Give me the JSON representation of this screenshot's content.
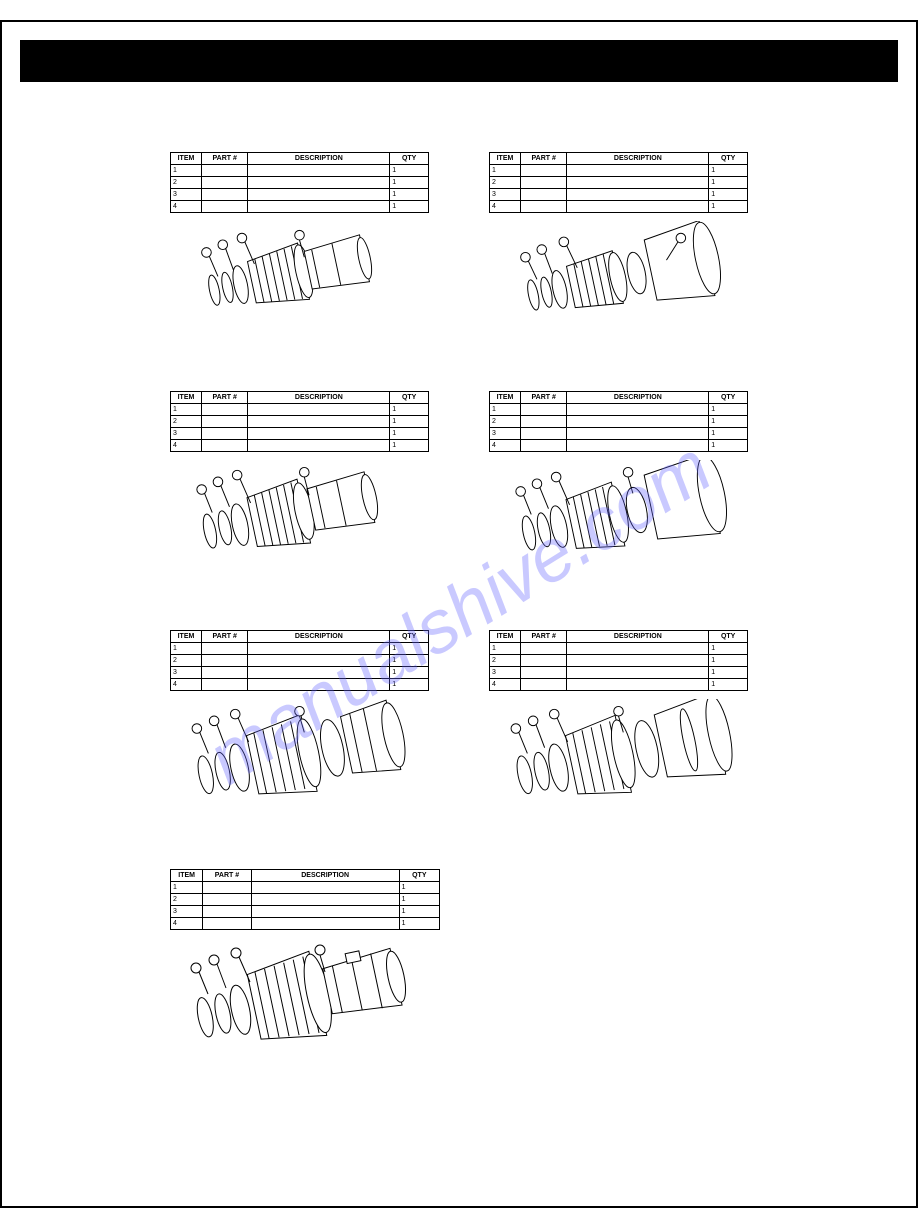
{
  "watermark_text": "manualshive.com",
  "watermark_color": "rgba(100,100,255,0.35)",
  "table_header": {
    "c1": "ITEM",
    "c2": "PART #",
    "c3": "DESCRIPTION",
    "c4": "QTY"
  },
  "blocks": [
    {
      "rows": [
        {
          "c1": "1",
          "c2": "",
          "c3": "",
          "c4": "1"
        },
        {
          "c1": "2",
          "c2": "",
          "c3": "",
          "c4": "1"
        },
        {
          "c1": "3",
          "c2": "",
          "c3": "",
          "c4": "1"
        },
        {
          "c1": "4",
          "c2": "",
          "c3": "",
          "c4": "1"
        }
      ]
    },
    {
      "rows": [
        {
          "c1": "1",
          "c2": "",
          "c3": "",
          "c4": "1"
        },
        {
          "c1": "2",
          "c2": "",
          "c3": "",
          "c4": "1"
        },
        {
          "c1": "3",
          "c2": "",
          "c3": "",
          "c4": "1"
        },
        {
          "c1": "4",
          "c2": "",
          "c3": "",
          "c4": "1"
        }
      ]
    },
    {
      "rows": [
        {
          "c1": "1",
          "c2": "",
          "c3": "",
          "c4": "1"
        },
        {
          "c1": "2",
          "c2": "",
          "c3": "",
          "c4": "1"
        },
        {
          "c1": "3",
          "c2": "",
          "c3": "",
          "c4": "1"
        },
        {
          "c1": "4",
          "c2": "",
          "c3": "",
          "c4": "1"
        }
      ]
    },
    {
      "rows": [
        {
          "c1": "1",
          "c2": "",
          "c3": "",
          "c4": "1"
        },
        {
          "c1": "2",
          "c2": "",
          "c3": "",
          "c4": "1"
        },
        {
          "c1": "3",
          "c2": "",
          "c3": "",
          "c4": "1"
        },
        {
          "c1": "4",
          "c2": "",
          "c3": "",
          "c4": "1"
        }
      ]
    },
    {
      "rows": [
        {
          "c1": "1",
          "c2": "",
          "c3": "",
          "c4": "1"
        },
        {
          "c1": "2",
          "c2": "",
          "c3": "",
          "c4": "1"
        },
        {
          "c1": "3",
          "c2": "",
          "c3": "",
          "c4": "1"
        },
        {
          "c1": "4",
          "c2": "",
          "c3": "",
          "c4": "1"
        }
      ]
    },
    {
      "rows": [
        {
          "c1": "1",
          "c2": "",
          "c3": "",
          "c4": "1"
        },
        {
          "c1": "2",
          "c2": "",
          "c3": "",
          "c4": "1"
        },
        {
          "c1": "3",
          "c2": "",
          "c3": "",
          "c4": "1"
        },
        {
          "c1": "4",
          "c2": "",
          "c3": "",
          "c4": "1"
        }
      ]
    },
    {
      "rows": [
        {
          "c1": "1",
          "c2": "",
          "c3": "",
          "c4": "1"
        },
        {
          "c1": "2",
          "c2": "",
          "c3": "",
          "c4": "1"
        },
        {
          "c1": "3",
          "c2": "",
          "c3": "",
          "c4": "1"
        },
        {
          "c1": "4",
          "c2": "",
          "c3": "",
          "c4": "1"
        }
      ]
    }
  ],
  "diagram_style": {
    "stroke": "#000000",
    "stroke_width": 1,
    "fill": "#ffffff"
  }
}
